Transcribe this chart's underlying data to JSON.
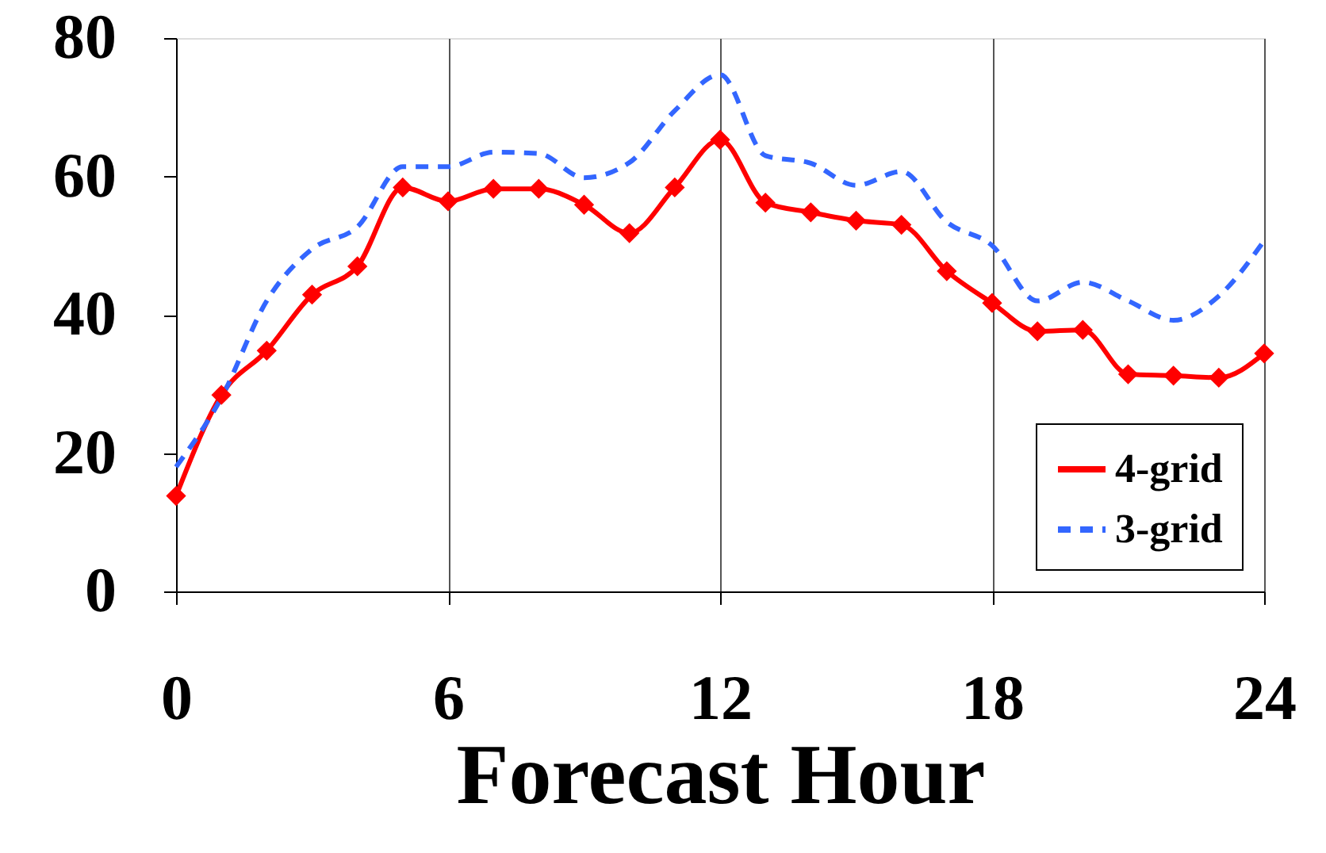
{
  "chart_data": {
    "type": "line",
    "xlabel": "Forecast Hour",
    "x": [
      0,
      1,
      2,
      3,
      4,
      5,
      6,
      7,
      8,
      9,
      10,
      11,
      12,
      13,
      14,
      15,
      16,
      17,
      18,
      19,
      20,
      21,
      22,
      23,
      24
    ],
    "series": [
      {
        "name": "4-grid",
        "color": "#ff0000",
        "marker": "diamond",
        "line_style": "solid",
        "values": [
          13.8,
          28.4,
          34.8,
          42.9,
          47,
          58.4,
          56.4,
          58.2,
          58.2,
          55.9,
          51.8,
          58.4,
          65.3,
          56.2,
          54.8,
          53.6,
          53,
          46.3,
          41.7,
          37.6,
          37.8,
          31.4,
          31.2,
          30.9,
          34.4
        ]
      },
      {
        "name": "3-grid",
        "color": "#3366ff",
        "marker": "none",
        "line_style": "dashed",
        "values": [
          18,
          28,
          42,
          49.5,
          52.7,
          61.4,
          61.4,
          63.5,
          63.3,
          59.8,
          62,
          69.5,
          74.7,
          63,
          61.9,
          58.7,
          60.7,
          53.4,
          50,
          42,
          44.7,
          42,
          39.2,
          42.7,
          50.7
        ]
      }
    ],
    "xlim": [
      0,
      24
    ],
    "xticks": [
      0,
      6,
      12,
      18,
      24
    ],
    "ylim": [
      0,
      80
    ],
    "yticks": [
      0,
      20,
      40,
      60,
      80
    ],
    "grid": "x",
    "legend": "bottom right"
  }
}
